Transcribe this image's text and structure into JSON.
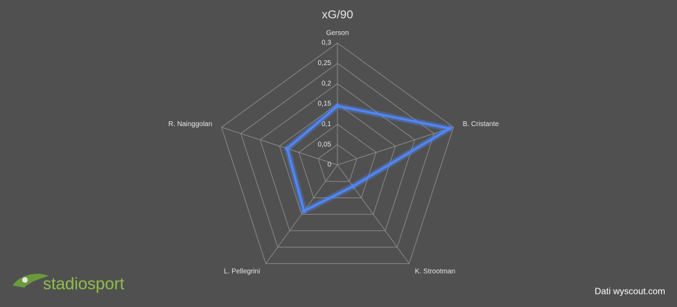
{
  "chart_data": {
    "type": "radar",
    "title": "xG/90",
    "categories": [
      "Gerson",
      "B. Cristante",
      "K. Strootman",
      "L. Pellegrini",
      "R. Nainggolan"
    ],
    "series": [
      {
        "name": "xG/90",
        "color": "#4f86f7",
        "values": [
          0.145,
          0.29,
          0.065,
          0.14,
          0.13
        ]
      }
    ],
    "ylim": [
      0,
      0.3
    ],
    "yticks": [
      {
        "value": 0,
        "label": "0"
      },
      {
        "value": 0.05,
        "label": "0,05"
      },
      {
        "value": 0.1,
        "label": "0,1"
      },
      {
        "value": 0.15,
        "label": "0,15"
      },
      {
        "value": 0.2,
        "label": "0,2"
      },
      {
        "value": 0.25,
        "label": "0,25"
      },
      {
        "value": 0.3,
        "label": "0,3"
      }
    ],
    "grid": true
  },
  "logo": "stadiosport",
  "source": "Dati wyscout.com"
}
